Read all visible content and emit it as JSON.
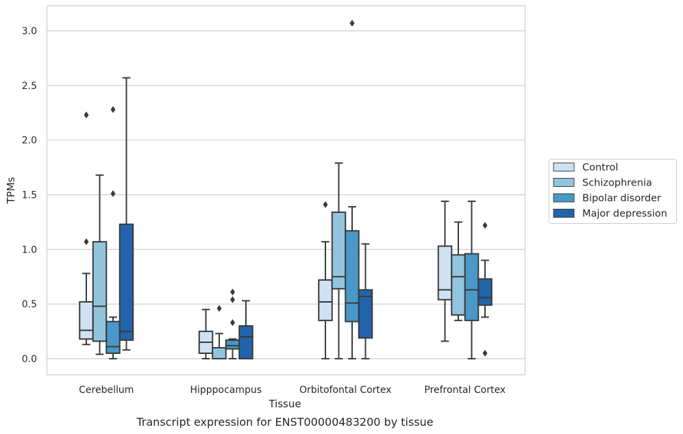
{
  "chart_data": {
    "type": "box",
    "xlabel": "Tissue",
    "ylabel": "TPMs",
    "caption": "Transcript expression for ENST00000483200 by tissue",
    "ylim": [
      -0.15,
      3.23
    ],
    "yticks": [
      0.0,
      0.5,
      1.0,
      1.5,
      2.0,
      2.5,
      3.0
    ],
    "ytick_labels": [
      "0.0",
      "0.5",
      "1.0",
      "1.5",
      "2.0",
      "2.5",
      "3.0"
    ],
    "categories": [
      "Cerebellum",
      "Hipppocampus",
      "Orbitofontal Cortex",
      "Prefrontal Cortex"
    ],
    "grid": "horizontal",
    "legend_position": "right",
    "series": [
      {
        "name": "Control",
        "color": "#cfe1f2",
        "boxes": [
          {
            "min": 0.13,
            "q1": 0.18,
            "median": 0.26,
            "q3": 0.52,
            "max": 0.78,
            "outliers": [
              1.07,
              2.23
            ]
          },
          {
            "min": 0.0,
            "q1": 0.05,
            "median": 0.15,
            "q3": 0.25,
            "max": 0.45,
            "outliers": []
          },
          {
            "min": 0.0,
            "q1": 0.35,
            "median": 0.52,
            "q3": 0.72,
            "max": 1.07,
            "outliers": [
              1.41
            ]
          },
          {
            "min": 0.16,
            "q1": 0.54,
            "median": 0.63,
            "q3": 1.03,
            "max": 1.44,
            "outliers": []
          }
        ]
      },
      {
        "name": "Schizophrenia",
        "color": "#93c4de",
        "boxes": [
          {
            "min": 0.04,
            "q1": 0.16,
            "median": 0.48,
            "q3": 1.07,
            "max": 1.68,
            "outliers": []
          },
          {
            "min": 0.0,
            "q1": 0.0,
            "median": 0.1,
            "q3": 0.1,
            "max": 0.23,
            "outliers": [
              0.46
            ]
          },
          {
            "min": 0.0,
            "q1": 0.64,
            "median": 0.75,
            "q3": 1.34,
            "max": 1.79,
            "outliers": []
          },
          {
            "min": 0.35,
            "q1": 0.4,
            "median": 0.75,
            "q3": 0.95,
            "max": 1.25,
            "outliers": []
          }
        ]
      },
      {
        "name": "Bipolar disorder",
        "color": "#4a98c9",
        "boxes": [
          {
            "min": 0.0,
            "q1": 0.05,
            "median": 0.11,
            "q3": 0.34,
            "max": 0.38,
            "outliers": [
              1.51,
              2.28
            ]
          },
          {
            "min": 0.0,
            "q1": 0.09,
            "median": 0.12,
            "q3": 0.17,
            "max": 0.18,
            "outliers": [
              0.33,
              0.54,
              0.61
            ]
          },
          {
            "min": 0.0,
            "q1": 0.34,
            "median": 0.51,
            "q3": 1.17,
            "max": 1.39,
            "outliers": [
              3.07
            ]
          },
          {
            "min": 0.0,
            "q1": 0.35,
            "median": 0.63,
            "q3": 0.96,
            "max": 1.44,
            "outliers": []
          }
        ]
      },
      {
        "name": "Major depression",
        "color": "#2164ab",
        "boxes": [
          {
            "min": 0.08,
            "q1": 0.17,
            "median": 0.25,
            "q3": 1.23,
            "max": 2.57,
            "outliers": []
          },
          {
            "min": 0.0,
            "q1": 0.0,
            "median": 0.2,
            "q3": 0.3,
            "max": 0.53,
            "outliers": []
          },
          {
            "min": 0.0,
            "q1": 0.19,
            "median": 0.57,
            "q3": 0.63,
            "max": 1.05,
            "outliers": []
          },
          {
            "min": 0.38,
            "q1": 0.49,
            "median": 0.56,
            "q3": 0.73,
            "max": 0.9,
            "outliers": [
              0.05,
              1.22
            ]
          }
        ]
      }
    ]
  }
}
